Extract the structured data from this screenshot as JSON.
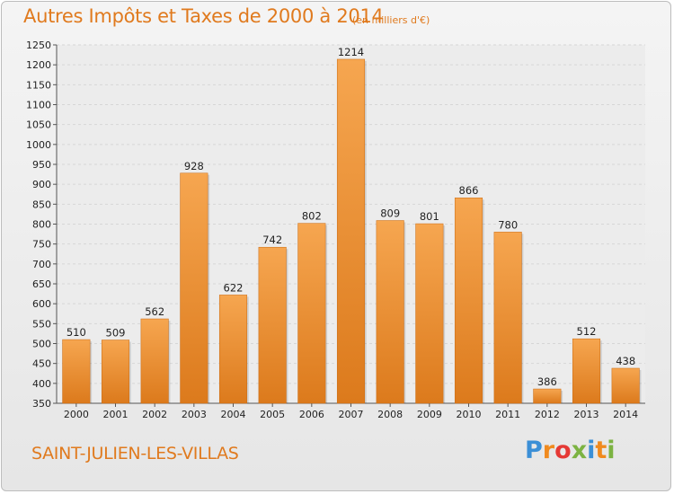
{
  "title": "Autres Impôts et Taxes de 2000 à 2014",
  "subtitle": "(en milliers d'€)",
  "commune": "SAINT-JULIEN-LES-VILLAS",
  "logo": {
    "letters": [
      "P",
      "r",
      "o",
      "x",
      "i",
      "t",
      "i"
    ],
    "colors": [
      "#3b8fd6",
      "#f08a1e",
      "#e53935",
      "#7cb342",
      "#3b8fd6",
      "#f08a1e",
      "#7cb342"
    ]
  },
  "colors": {
    "bar_top": "#f6a650",
    "bar_bottom": "#dc7a1c",
    "accent": "#e07a1e",
    "grid": "#d6d6d6"
  },
  "chart_data": {
    "type": "bar",
    "categories": [
      "2000",
      "2001",
      "2002",
      "2003",
      "2004",
      "2005",
      "2006",
      "2007",
      "2008",
      "2009",
      "2010",
      "2011",
      "2012",
      "2013",
      "2014"
    ],
    "values": [
      510,
      509,
      562,
      928,
      622,
      742,
      802,
      1214,
      809,
      801,
      866,
      780,
      386,
      512,
      438
    ],
    "value_labels": [
      "510",
      "509",
      "562",
      "928",
      "622",
      "742",
      "802",
      "1214",
      "809",
      "801",
      "866",
      "780",
      "386",
      "512",
      "438"
    ],
    "ylim": [
      350,
      1250
    ],
    "yticks": [
      "350",
      "400",
      "450",
      "500",
      "550",
      "600",
      "650",
      "700",
      "750",
      "800",
      "850",
      "900",
      "950",
      "1000",
      "1050",
      "1100",
      "1150",
      "1200",
      "1250"
    ],
    "grid": true,
    "xlabel": "",
    "ylabel": ""
  }
}
